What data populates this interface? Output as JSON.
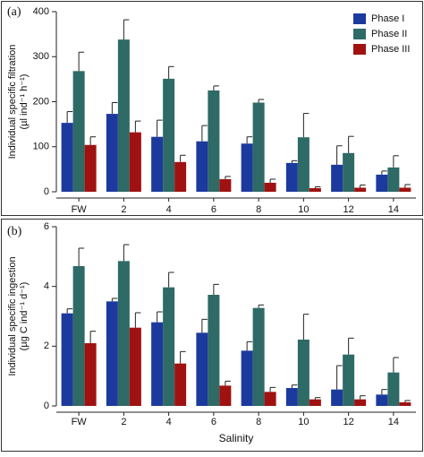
{
  "chart_data": [
    {
      "type": "bar",
      "panel_label": "(a)",
      "ylabel": [
        "Individual specific filtration",
        "(µl ind⁻¹ h⁻¹)"
      ],
      "categories": [
        "FW",
        "2",
        "4",
        "6",
        "8",
        "10",
        "12",
        "14"
      ],
      "ylim": [
        0,
        400
      ],
      "yticks": [
        0,
        100,
        200,
        300,
        400
      ],
      "legend": "upper right",
      "series": [
        {
          "name": "Phase I",
          "color": "#1c3a9e",
          "values": [
            153,
            173,
            122,
            112,
            107,
            64,
            60,
            38
          ],
          "errors": [
            25,
            25,
            37,
            35,
            15,
            5,
            42,
            8
          ]
        },
        {
          "name": "Phase II",
          "color": "#2e6a66",
          "values": [
            268,
            338,
            251,
            225,
            198,
            121,
            86,
            54
          ],
          "errors": [
            42,
            44,
            27,
            10,
            7,
            53,
            37,
            26
          ]
        },
        {
          "name": "Phase III",
          "color": "#a01212",
          "values": [
            104,
            132,
            66,
            28,
            20,
            8,
            9,
            9
          ],
          "errors": [
            18,
            25,
            15,
            6,
            8,
            3,
            6,
            7
          ]
        }
      ]
    },
    {
      "type": "bar",
      "panel_label": "(b)",
      "ylabel": [
        "Individual specific ingestion",
        "(µg C ind⁻¹ d⁻¹)"
      ],
      "xlabel": "Salinity",
      "categories": [
        "FW",
        "2",
        "4",
        "6",
        "8",
        "10",
        "12",
        "14"
      ],
      "ylim": [
        0,
        6
      ],
      "yticks": [
        0,
        2,
        4,
        6
      ],
      "series": [
        {
          "color": "#1c3a9e",
          "values": [
            3.1,
            3.5,
            2.8,
            2.45,
            1.85,
            0.6,
            0.55,
            0.38
          ],
          "errors": [
            0.15,
            0.1,
            0.35,
            0.45,
            0.3,
            0.1,
            0.8,
            0.17
          ]
        },
        {
          "color": "#2e6a66",
          "values": [
            4.68,
            4.85,
            3.97,
            3.72,
            3.28,
            2.22,
            1.72,
            1.12
          ],
          "errors": [
            0.6,
            0.55,
            0.5,
            0.35,
            0.1,
            0.85,
            0.55,
            0.5
          ]
        },
        {
          "color": "#a01212",
          "values": [
            2.1,
            2.62,
            1.42,
            0.68,
            0.47,
            0.22,
            0.22,
            0.12
          ],
          "errors": [
            0.4,
            0.5,
            0.4,
            0.15,
            0.15,
            0.06,
            0.12,
            0.06
          ]
        }
      ]
    }
  ]
}
